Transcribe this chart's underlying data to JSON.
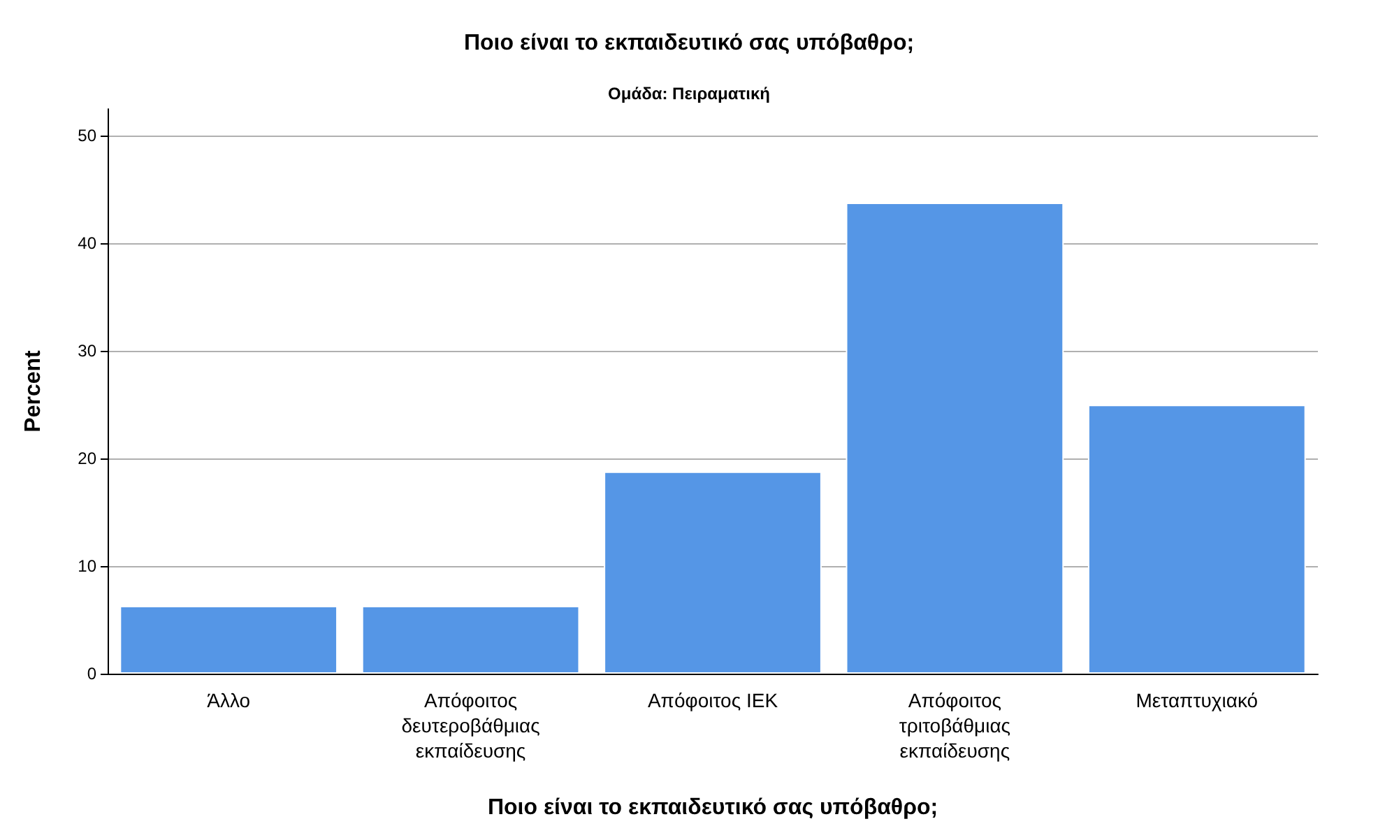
{
  "chart_data": {
    "type": "bar",
    "title": "Ποιο είναι το εκπαιδευτικό σας υπόβαθρο;",
    "subtitle": "Ομάδα: Πειραματική",
    "xlabel": "Ποιο είναι το εκπαιδευτικό σας υπόβαθρο;",
    "ylabel": "Percent",
    "categories": [
      "Άλλο",
      "Απόφοιτος δευτεροβάθμιας εκπαίδευσης",
      "Απόφοιτος ΙΕΚ",
      "Απόφοιτος τριτοβάθμιας εκπαίδευσης",
      "Μεταπτυχιακό"
    ],
    "values": [
      6.3,
      6.3,
      18.8,
      43.8,
      25
    ],
    "color": "#5596e6",
    "ylim": [
      0,
      52.5
    ],
    "yticks": [
      0,
      10,
      20,
      30,
      40,
      50
    ],
    "grid": "y"
  }
}
